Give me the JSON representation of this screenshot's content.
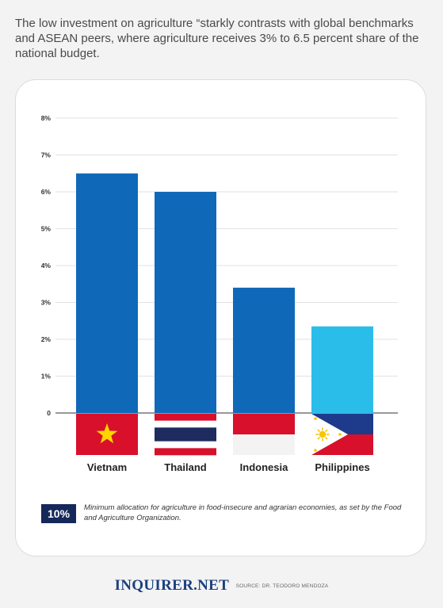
{
  "intro_text": "The low investment on agriculture “starkly contrasts with global benchmarks and ASEAN peers, where agriculture receives 3% to 6.5 percent share of the national budget.",
  "chart_data": {
    "type": "bar",
    "categories": [
      "Vietnam",
      "Thailand",
      "Indonesia",
      "Philippines"
    ],
    "values": [
      6.5,
      6.0,
      3.4,
      2.35
    ],
    "bar_colors": [
      "#1069b8",
      "#1069b8",
      "#1069b8",
      "#2bbdea"
    ],
    "ylim": [
      0,
      8
    ],
    "y_ticks": [
      "0",
      "1%",
      "2%",
      "3%",
      "4%",
      "5%",
      "6%",
      "7%",
      "8%"
    ],
    "grid": true,
    "flags": [
      "vietnam-flag",
      "thailand-flag",
      "indonesia-flag",
      "philippines-flag"
    ]
  },
  "note": {
    "badge": "10%",
    "text": "Minimum allocation for agriculture in food-insecure and agrarian economies, as set by the Food and Agriculture Organization."
  },
  "footer": {
    "brand": "INQUIRER.NET",
    "source": "SOURCE: DR. TEODORO MENDOZA"
  },
  "colors": {
    "bar": "#1069b8",
    "highlight_bar": "#2bbdea",
    "note_badge": "#14285a",
    "brand": "#1c3f80"
  }
}
